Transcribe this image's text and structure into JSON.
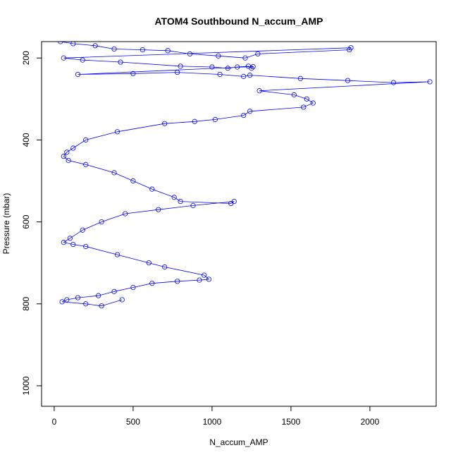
{
  "chart_data": {
    "type": "scatter",
    "title": "ATOM4 Southbound N_accum_AMP",
    "xlabel": "N_accum_AMP",
    "ylabel": "Pressure (mbar)",
    "xlim": [
      -80,
      2420
    ],
    "ylim": [
      1050,
      160
    ],
    "y_reversed": true,
    "x_ticks": [
      0,
      500,
      1000,
      1500,
      2000
    ],
    "y_ticks": [
      200,
      400,
      600,
      800,
      1000
    ],
    "x_tick_labels": [
      "0",
      "500",
      "1000",
      "1500",
      "2000"
    ],
    "y_tick_labels": [
      "200",
      "400",
      "600",
      "800",
      "1000"
    ],
    "series_color": "#0000ff",
    "marker": "open-circle",
    "connected_line": true,
    "grid": false,
    "series": [
      {
        "x": [
          40,
          120,
          260,
          380,
          560,
          720,
          860,
          1040,
          1210,
          1290,
          1870,
          1880,
          60,
          180,
          420,
          800,
          1000,
          1100,
          1160,
          1230,
          1250,
          1260,
          150,
          500,
          780,
          1050,
          1200,
          1240,
          1560,
          1860,
          2150,
          2380,
          1300,
          1520,
          1600,
          1640,
          1580,
          1240,
          1200,
          1020,
          890,
          700,
          400,
          200,
          120,
          80,
          60,
          90,
          200,
          380,
          500,
          620,
          760,
          800,
          1120,
          1140,
          880,
          660,
          450,
          300,
          180,
          100,
          60,
          120,
          200,
          400,
          600,
          700,
          950,
          980,
          920,
          780,
          620,
          500,
          380,
          280,
          150,
          80,
          50,
          200,
          300,
          430
        ],
        "y": [
          160,
          165,
          170,
          178,
          180,
          182,
          190,
          195,
          200,
          190,
          180,
          175,
          200,
          205,
          210,
          220,
          222,
          225,
          222,
          220,
          225,
          221,
          240,
          238,
          235,
          240,
          245,
          242,
          250,
          255,
          260,
          258,
          280,
          290,
          300,
          310,
          320,
          330,
          340,
          350,
          355,
          360,
          380,
          400,
          420,
          430,
          440,
          450,
          460,
          480,
          500,
          520,
          540,
          550,
          555,
          550,
          560,
          570,
          580,
          600,
          620,
          640,
          650,
          655,
          660,
          680,
          700,
          710,
          730,
          740,
          742,
          745,
          750,
          760,
          770,
          780,
          785,
          790,
          795,
          800,
          805,
          790
        ]
      }
    ]
  }
}
